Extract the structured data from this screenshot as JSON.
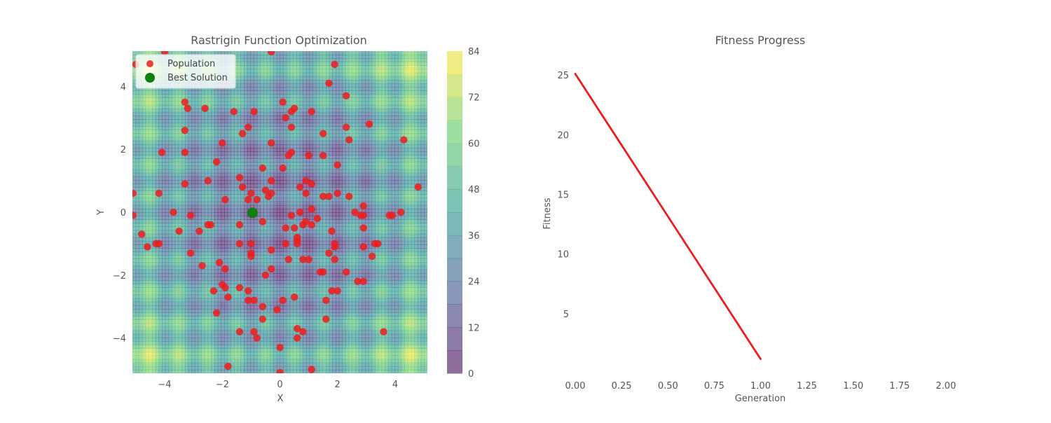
{
  "chart_data": [
    {
      "type": "scatter",
      "title": "Rastrigin Function Optimization",
      "xlabel": "X",
      "ylabel": "Y",
      "xlim": [
        -5.12,
        5.12
      ],
      "ylim": [
        -5.12,
        5.12
      ],
      "xticks": [
        -4,
        -2,
        0,
        2,
        4
      ],
      "yticks": [
        -4,
        -2,
        0,
        2,
        4
      ],
      "background": "Rastrigin contour",
      "colormap": "viridis",
      "colorbar": {
        "min": 0,
        "max": 84,
        "ticks": [
          0,
          12,
          24,
          36,
          48,
          60,
          72,
          84
        ]
      },
      "legend": {
        "placement": "top-left",
        "entries": [
          "Population",
          "Best Solution"
        ]
      },
      "series": [
        {
          "name": "Population",
          "color": "#ee1c1c",
          "points": [
            [
              -5.0,
              4.7
            ],
            [
              -4.0,
              5.1
            ],
            [
              -0.3,
              5.1
            ],
            [
              1.9,
              4.7
            ],
            [
              1.7,
              4.1
            ],
            [
              2.3,
              3.7
            ],
            [
              -3.3,
              3.5
            ],
            [
              -3.2,
              3.3
            ],
            [
              -2.6,
              3.3
            ],
            [
              -1.6,
              3.2
            ],
            [
              -0.9,
              3.2
            ],
            [
              0.1,
              3.5
            ],
            [
              0.5,
              3.3
            ],
            [
              0.4,
              3.2
            ],
            [
              1.1,
              3.2
            ],
            [
              0.2,
              3.0
            ],
            [
              2.3,
              2.7
            ],
            [
              3.1,
              2.8
            ],
            [
              -3.3,
              2.6
            ],
            [
              -1.3,
              2.5
            ],
            [
              -1.1,
              2.7
            ],
            [
              0.4,
              2.7
            ],
            [
              1.5,
              2.5
            ],
            [
              2.4,
              2.3
            ],
            [
              4.3,
              2.3
            ],
            [
              -4.1,
              1.9
            ],
            [
              -3.3,
              1.9
            ],
            [
              -2.0,
              2.2
            ],
            [
              -0.3,
              2.2
            ],
            [
              0.4,
              1.9
            ],
            [
              1.5,
              1.8
            ],
            [
              1.0,
              1.8
            ],
            [
              -2.2,
              1.6
            ],
            [
              0.3,
              1.8
            ],
            [
              -0.6,
              1.4
            ],
            [
              0.1,
              1.4
            ],
            [
              2.0,
              1.5
            ],
            [
              -1.4,
              1.1
            ],
            [
              -1.3,
              0.8
            ],
            [
              -0.3,
              1.0
            ],
            [
              -4.2,
              0.6
            ],
            [
              -3.3,
              0.9
            ],
            [
              -2.5,
              1.0
            ],
            [
              -1.0,
              0.6
            ],
            [
              -0.5,
              0.7
            ],
            [
              -0.3,
              0.6
            ],
            [
              0.7,
              0.8
            ],
            [
              0.9,
              1.0
            ],
            [
              1.1,
              0.9
            ],
            [
              0.9,
              0.6
            ],
            [
              1.5,
              0.5
            ],
            [
              1.7,
              0.5
            ],
            [
              2.0,
              0.6
            ],
            [
              2.4,
              0.5
            ],
            [
              4.8,
              0.8
            ],
            [
              -5.1,
              0.6
            ],
            [
              -1.9,
              0.4
            ],
            [
              -1.1,
              0.4
            ],
            [
              -0.8,
              0.4
            ],
            [
              -0.4,
              0.5
            ],
            [
              2.9,
              0.2
            ],
            [
              -5.1,
              -0.1
            ],
            [
              -3.7,
              0.0
            ],
            [
              -3.1,
              -0.1
            ],
            [
              0.4,
              -0.1
            ],
            [
              0.7,
              0.0
            ],
            [
              1.1,
              0.1
            ],
            [
              1.3,
              -0.2
            ],
            [
              2.6,
              0.0
            ],
            [
              2.8,
              -0.1
            ],
            [
              2.9,
              -0.1
            ],
            [
              3.8,
              -0.1
            ],
            [
              3.9,
              -0.1
            ],
            [
              4.2,
              0.0
            ],
            [
              -2.5,
              -0.4
            ],
            [
              -2.4,
              -0.4
            ],
            [
              -1.4,
              -0.4
            ],
            [
              -0.6,
              -0.3
            ],
            [
              0.2,
              -0.5
            ],
            [
              0.5,
              -0.5
            ],
            [
              0.8,
              -0.4
            ],
            [
              0.9,
              -0.3
            ],
            [
              1.1,
              -0.4
            ],
            [
              1.8,
              -0.6
            ],
            [
              2.9,
              -0.5
            ],
            [
              -4.8,
              -0.7
            ],
            [
              -4.6,
              -1.1
            ],
            [
              -4.3,
              -1.0
            ],
            [
              -4.2,
              -1.0
            ],
            [
              -3.5,
              -0.6
            ],
            [
              -2.8,
              -0.6
            ],
            [
              -3.1,
              -1.3
            ],
            [
              -2.1,
              -1.6
            ],
            [
              -1.4,
              -1.0
            ],
            [
              -1.0,
              -1.0
            ],
            [
              -1.0,
              -1.3
            ],
            [
              -1.0,
              -1.4
            ],
            [
              -0.3,
              -1.2
            ],
            [
              0.2,
              -1.0
            ],
            [
              0.6,
              -0.8
            ],
            [
              0.6,
              -0.9
            ],
            [
              0.6,
              -1.0
            ],
            [
              0.3,
              -1.5
            ],
            [
              0.8,
              -1.5
            ],
            [
              1.0,
              -1.5
            ],
            [
              1.7,
              -1.3
            ],
            [
              1.9,
              -1.0
            ],
            [
              1.9,
              -1.1
            ],
            [
              1.9,
              -1.5
            ],
            [
              2.9,
              -1.1
            ],
            [
              3.3,
              -1.0
            ],
            [
              3.4,
              -1.0
            ],
            [
              3.2,
              -1.4
            ],
            [
              -2.7,
              -1.7
            ],
            [
              -1.9,
              -1.8
            ],
            [
              -0.5,
              -2.0
            ],
            [
              -0.3,
              -1.8
            ],
            [
              1.4,
              -1.9
            ],
            [
              1.5,
              -1.9
            ],
            [
              2.3,
              -1.9
            ],
            [
              2.7,
              -2.2
            ],
            [
              2.9,
              -2.2
            ],
            [
              -2.3,
              -2.5
            ],
            [
              -2.0,
              -2.3
            ],
            [
              -1.9,
              -2.4
            ],
            [
              -1.8,
              -2.7
            ],
            [
              -1.4,
              -2.4
            ],
            [
              -1.1,
              -2.5
            ],
            [
              -1.1,
              -2.8
            ],
            [
              -0.9,
              -2.8
            ],
            [
              -0.6,
              -3.0
            ],
            [
              -0.1,
              -3.1
            ],
            [
              0.1,
              -2.8
            ],
            [
              0.5,
              -2.7
            ],
            [
              1.6,
              -2.8
            ],
            [
              1.8,
              -2.5
            ],
            [
              2.0,
              -2.5
            ],
            [
              -2.2,
              -3.2
            ],
            [
              -1.4,
              -3.8
            ],
            [
              -0.9,
              -3.8
            ],
            [
              -0.8,
              -4.0
            ],
            [
              -0.6,
              -3.4
            ],
            [
              0.6,
              -3.7
            ],
            [
              0.8,
              -3.8
            ],
            [
              0.6,
              -4.0
            ],
            [
              1.6,
              -3.4
            ],
            [
              3.6,
              -3.8
            ],
            [
              0.0,
              -4.3
            ],
            [
              -1.8,
              -4.9
            ],
            [
              1.1,
              -5.0
            ],
            [
              0.0,
              -5.1
            ]
          ]
        },
        {
          "name": "Best Solution",
          "color": "#107f10",
          "points": [
            [
              -0.95,
              -0.02
            ]
          ]
        }
      ]
    },
    {
      "type": "line",
      "title": "Fitness Progress",
      "xlabel": "Generation",
      "ylabel": "Fitness",
      "xlim": [
        0.0,
        2.0
      ],
      "ylim": [
        0.0,
        27.0
      ],
      "xticks": [
        "0.00",
        "0.25",
        "0.50",
        "0.75",
        "1.00",
        "1.25",
        "1.50",
        "1.75",
        "2.00"
      ],
      "yticks": [
        5,
        10,
        15,
        20,
        25
      ],
      "series": [
        {
          "color": "#ee1c1c",
          "x": [
            0,
            1
          ],
          "y": [
            25.1,
            1.2
          ]
        }
      ]
    }
  ]
}
